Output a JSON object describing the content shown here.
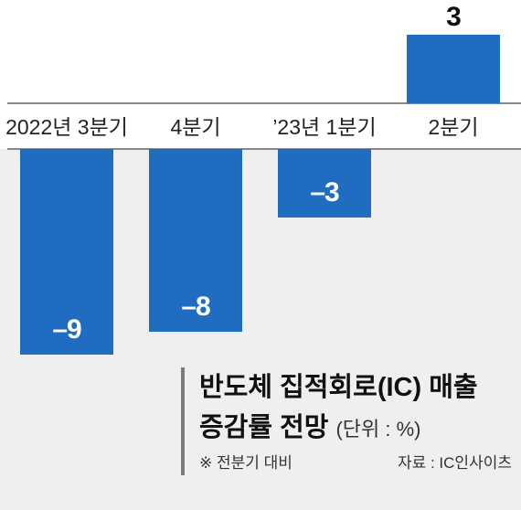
{
  "chart_data": {
    "type": "bar",
    "title": "반도체 집적회로(IC) 매출 증감률 전망",
    "title_line1": "반도체 집적회로(IC) 매출",
    "title_line2": "증감률 전망",
    "unit": "(단위 : %)",
    "note": "※ 전분기 대비",
    "source": "자료 : IC인사이츠",
    "categories": [
      "2022년 3분기",
      "4분기",
      "’23년 1분기",
      "2분기"
    ],
    "values": [
      -9,
      -8,
      -3,
      3
    ],
    "value_labels": [
      "–9",
      "–8",
      "–3",
      "3"
    ],
    "ylim": [
      -10.5,
      3.4
    ],
    "bar_color": "#1f6cc0",
    "axis_band_color": "#ffffff",
    "negative_area_color": "#efefef",
    "axis_line_color": "#444444",
    "grid": false,
    "legend": "none"
  }
}
